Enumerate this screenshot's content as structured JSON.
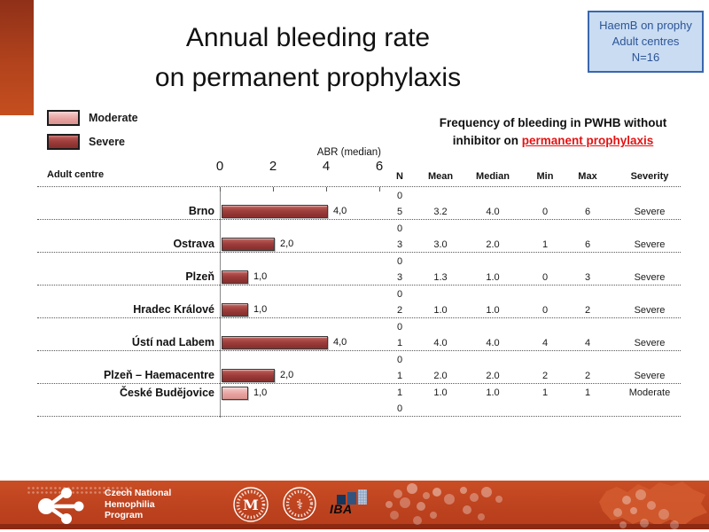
{
  "title": {
    "line1": "Annual bleeding rate",
    "line2": "on permanent prophylaxis"
  },
  "info_box": {
    "line1": "HaemB on prophy",
    "line2": "Adult centres",
    "line3": "N=16"
  },
  "legend": {
    "moderate": "Moderate",
    "severe": "Severe"
  },
  "chart": {
    "axis_label": "ABR (median)",
    "row_axis_label": "Adult centre",
    "tick0": "0",
    "tick1": "2",
    "tick2": "4",
    "tick3": "6"
  },
  "table": {
    "title_line1": "Frequency of bleeding in PWHB without",
    "title_line2_plain": "inhibitor on",
    "title_line2_red": "permanent prophylaxis",
    "headers": {
      "n": "N",
      "mean": "Mean",
      "median": "Median",
      "min": "Min",
      "max": "Max",
      "severity": "Severity"
    }
  },
  "rows": [
    {
      "centre": "Brno",
      "value": 4.0,
      "display": "4,0",
      "severity": "Severe",
      "severity_class": "severe",
      "sub": [
        {
          "n": "0",
          "mean": "",
          "median": "",
          "min": "",
          "max": "",
          "severity": ""
        },
        {
          "n": "5",
          "mean": "3.2",
          "median": "4.0",
          "min": "0",
          "max": "6",
          "severity": "Severe"
        }
      ]
    },
    {
      "centre": "Ostrava",
      "value": 2.0,
      "display": "2,0",
      "severity": "Severe",
      "severity_class": "severe",
      "sub": [
        {
          "n": "0",
          "mean": "",
          "median": "",
          "min": "",
          "max": "",
          "severity": ""
        },
        {
          "n": "3",
          "mean": "3.0",
          "median": "2.0",
          "min": "1",
          "max": "6",
          "severity": "Severe"
        }
      ]
    },
    {
      "centre": "Plzeň",
      "value": 1.0,
      "display": "1,0",
      "severity": "Severe",
      "severity_class": "severe",
      "sub": [
        {
          "n": "0",
          "mean": "",
          "median": "",
          "min": "",
          "max": "",
          "severity": ""
        },
        {
          "n": "3",
          "mean": "1.3",
          "median": "1.0",
          "min": "0",
          "max": "3",
          "severity": "Severe"
        }
      ]
    },
    {
      "centre": "Hradec Králové",
      "value": 1.0,
      "display": "1,0",
      "severity": "Severe",
      "severity_class": "severe",
      "sub": [
        {
          "n": "0",
          "mean": "",
          "median": "",
          "min": "",
          "max": "",
          "severity": ""
        },
        {
          "n": "2",
          "mean": "1.0",
          "median": "1.0",
          "min": "0",
          "max": "2",
          "severity": "Severe"
        }
      ]
    },
    {
      "centre": "Ústí nad Labem",
      "value": 4.0,
      "display": "4,0",
      "severity": "Severe",
      "severity_class": "severe",
      "sub": [
        {
          "n": "0",
          "mean": "",
          "median": "",
          "min": "",
          "max": "",
          "severity": ""
        },
        {
          "n": "1",
          "mean": "4.0",
          "median": "4.0",
          "min": "4",
          "max": "4",
          "severity": "Severe"
        }
      ]
    },
    {
      "centre": "Plzeň – Haemacentre",
      "value": 2.0,
      "display": "2,0",
      "severity": "Severe",
      "severity_class": "severe",
      "sub": [
        {
          "n": "0",
          "mean": "",
          "median": "",
          "min": "",
          "max": "",
          "severity": ""
        },
        {
          "n": "1",
          "mean": "2.0",
          "median": "2.0",
          "min": "2",
          "max": "2",
          "severity": "Severe"
        }
      ]
    },
    {
      "centre": "České Budějovice",
      "value": 1.0,
      "display": "1,0",
      "severity": "Moderate",
      "severity_class": "moderate",
      "sub": [
        {
          "n": "1",
          "mean": "1.0",
          "median": "1.0",
          "min": "1",
          "max": "1",
          "severity": "Moderate"
        },
        {
          "n": "0",
          "mean": "",
          "median": "",
          "min": "",
          "max": "",
          "severity": ""
        }
      ]
    }
  ],
  "chart_data": {
    "type": "bar",
    "orientation": "horizontal",
    "title": "Annual bleeding rate on permanent prophylaxis",
    "categories": [
      "Brno",
      "Ostrava",
      "Plzeň",
      "Hradec Králové",
      "Ústí nad Labem",
      "Plzeň – Haemacentre",
      "České Budějovice"
    ],
    "values": [
      4.0,
      2.0,
      1.0,
      1.0,
      4.0,
      2.0,
      1.0
    ],
    "value_labels": [
      "4,0",
      "2,0",
      "1,0",
      "1,0",
      "4,0",
      "2,0",
      "1,0"
    ],
    "bar_severity": [
      "Severe",
      "Severe",
      "Severe",
      "Severe",
      "Severe",
      "Severe",
      "Moderate"
    ],
    "xlabel": "ABR (median)",
    "xlim": [
      0,
      6
    ],
    "xticks": [
      0,
      2,
      4,
      6
    ],
    "legend_entries": [
      "Moderate",
      "Severe"
    ],
    "legend_position": "top-left",
    "grid": "dotted-horizontal"
  },
  "footer": {
    "program_line1": "Czech National",
    "program_line2": "Hemophilia",
    "program_line3": "Program",
    "iba": "IBA"
  },
  "colors": {
    "severe": "#a03f3d",
    "moderate": "#e5a09e",
    "accent_orange": "#bf4420",
    "info_box_bg": "#c9dcf2",
    "info_box_border": "#3a66ad",
    "info_box_text": "#2d5596",
    "table_title_red": "#e31313"
  }
}
